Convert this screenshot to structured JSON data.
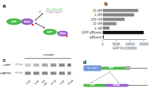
{
  "chart_data": [
    {
      "type": "diagram",
      "title": "a",
      "annotations": [
        "GFP",
        "ERdd",
        "off",
        "GFP",
        "ERdd"
      ],
      "colors": [
        "#4cba4c",
        "#9966cc"
      ]
    },
    {
      "type": "bar",
      "title": "b",
      "orientation": "horizontal",
      "categories": [
        "10 pM",
        "1 pM",
        "100 nM",
        "10 nM",
        "1 nM",
        "GFP-pBluesc",
        "pBluesc"
      ],
      "values": [
        13000,
        11500,
        8000,
        5000,
        2500,
        15000,
        400
      ],
      "colors": [
        "#888888",
        "#888888",
        "#888888",
        "#888888",
        "#888888",
        "#111111",
        "#111111"
      ],
      "xlabel": "GFP FU/OD600",
      "xlim": [
        0,
        16000
      ],
      "xticks": [
        0,
        5000,
        10000,
        15000
      ],
      "grid": false
    },
    {
      "type": "diagram",
      "title": "c",
      "annotations": [
        "estradiol",
        "aGFP",
        "42 kDa",
        "aGAPDH",
        "40 kDa",
        "0 pM",
        "1 pM",
        "100\npM",
        "10 nM",
        "1 µM",
        "10 µM"
      ]
    },
    {
      "type": "diagram",
      "title": "d",
      "annotations": [
        "soc. prom.",
        "GFP",
        "GFP",
        "ERdd"
      ],
      "colors": [
        "#7799dd",
        "#4cba4c",
        "#9966cc"
      ]
    }
  ]
}
